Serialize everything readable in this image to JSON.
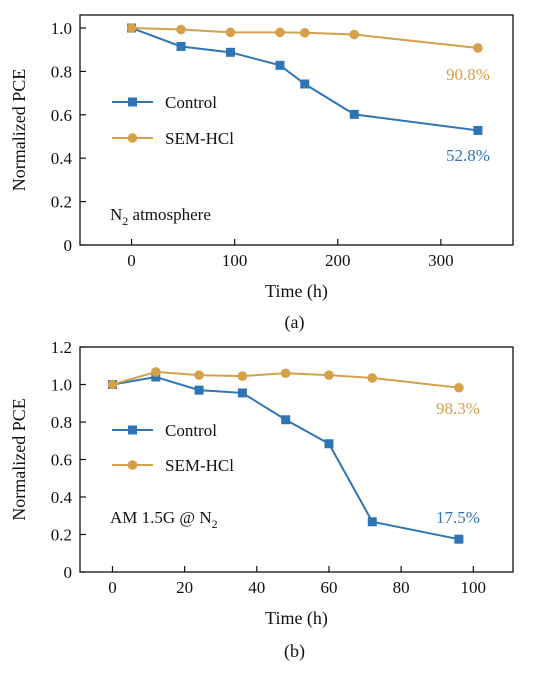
{
  "colors": {
    "control": "#2e75b6",
    "sem": "#d4a04a",
    "axis": "#111111"
  },
  "chart_data": [
    {
      "type": "line",
      "panel_label": "(a)",
      "xlabel": "Time (h)",
      "ylabel": "Normalized PCE",
      "xlim": [
        -50,
        370
      ],
      "ylim": [
        0,
        1.06
      ],
      "x_ticks": [
        0,
        100,
        200,
        300
      ],
      "y_ticks": [
        0,
        0.2,
        0.4,
        0.6,
        0.8,
        1.0
      ],
      "y_tick_labels": [
        "0",
        "0.2",
        "0.4",
        "0.6",
        "0.8",
        "1.0"
      ],
      "grid": false,
      "legend_position": "middle-left",
      "annotation_main": "N",
      "annotation_sub": "2",
      "annotation_tail": " atmosphere",
      "series": [
        {
          "name": "Control",
          "color_key": "control",
          "marker": "square",
          "x": [
            0,
            48,
            96,
            144,
            168,
            216,
            336
          ],
          "y": [
            1.0,
            0.915,
            0.888,
            0.828,
            0.742,
            0.602,
            0.528
          ],
          "end_label": "52.8%"
        },
        {
          "name": "SEM-HCl",
          "color_key": "sem",
          "marker": "circle",
          "x": [
            0,
            48,
            96,
            144,
            168,
            216,
            336
          ],
          "y": [
            1.0,
            0.993,
            0.98,
            0.98,
            0.978,
            0.97,
            0.908
          ],
          "end_label": "90.8%"
        }
      ]
    },
    {
      "type": "line",
      "panel_label": "(b)",
      "xlabel": "Time (h)",
      "ylabel": "Normalized PCE",
      "xlim": [
        -9,
        111
      ],
      "ylim": [
        0,
        1.2
      ],
      "x_ticks": [
        0,
        20,
        40,
        60,
        80,
        100
      ],
      "y_ticks": [
        0,
        0.2,
        0.4,
        0.6,
        0.8,
        1.0,
        1.2
      ],
      "y_tick_labels": [
        "0",
        "0.2",
        "0.4",
        "0.6",
        "0.8",
        "1.0",
        "1.2"
      ],
      "grid": false,
      "legend_position": "middle-left",
      "annotation_main": "AM 1.5G @ N",
      "annotation_sub": "2",
      "annotation_tail": "",
      "series": [
        {
          "name": "Control",
          "color_key": "control",
          "marker": "square",
          "x": [
            0,
            12,
            24,
            36,
            48,
            60,
            72,
            96
          ],
          "y": [
            1.0,
            1.04,
            0.97,
            0.955,
            0.812,
            0.684,
            0.268,
            0.175
          ],
          "end_label": "17.5%"
        },
        {
          "name": "SEM-HCl",
          "color_key": "sem",
          "marker": "circle",
          "x": [
            0,
            12,
            24,
            36,
            48,
            60,
            72,
            96
          ],
          "y": [
            1.0,
            1.067,
            1.05,
            1.045,
            1.06,
            1.05,
            1.035,
            0.983
          ],
          "end_label": "98.3%"
        }
      ]
    }
  ]
}
